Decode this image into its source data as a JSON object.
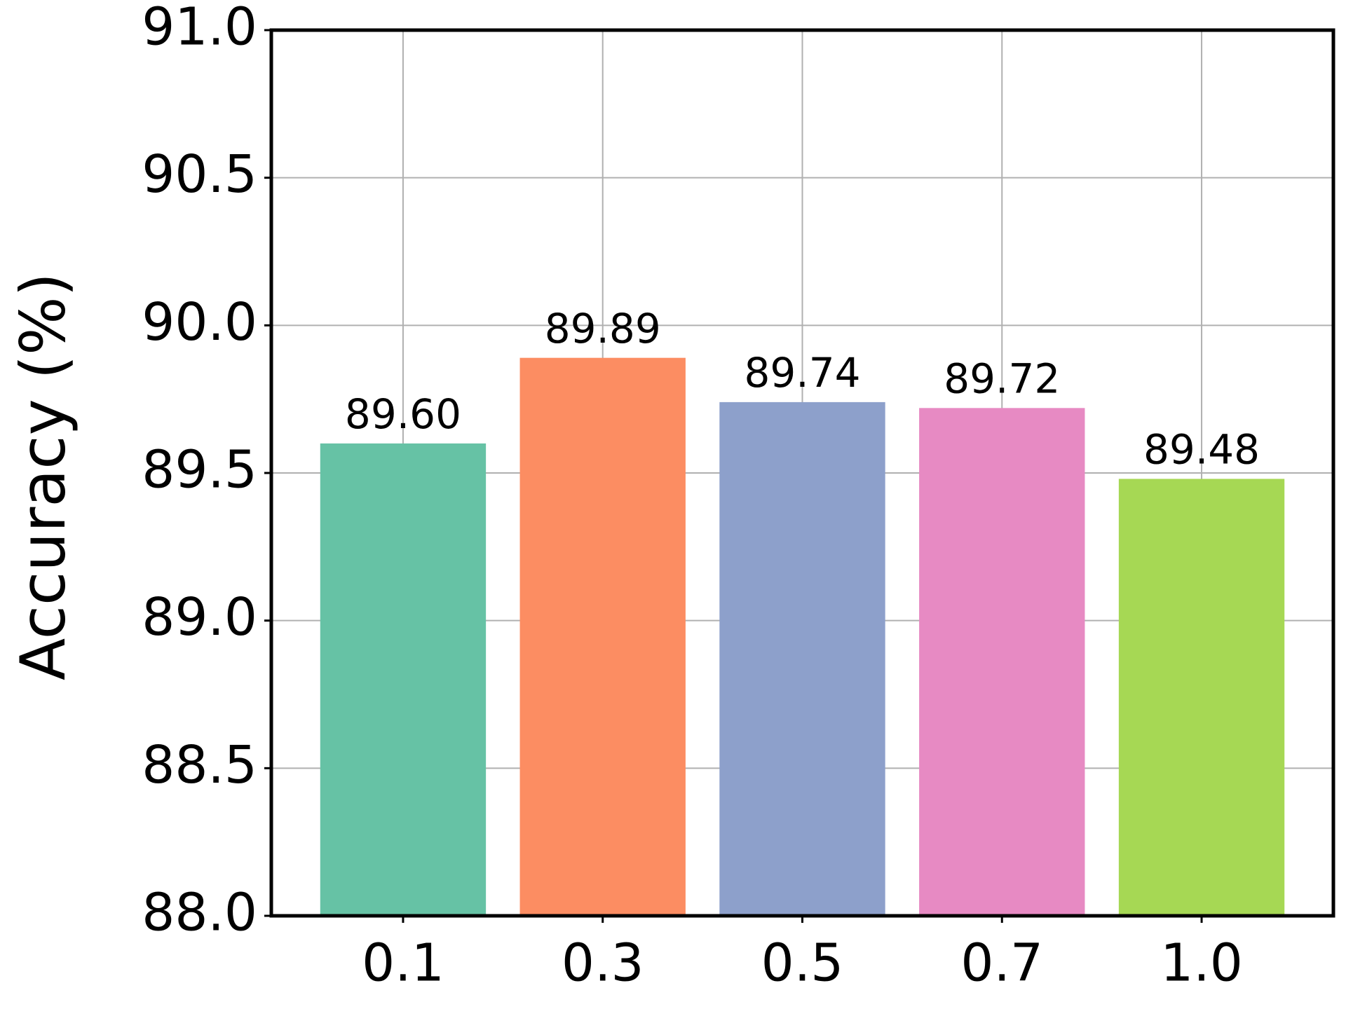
{
  "chart_data": {
    "type": "bar",
    "ylabel": "Accuracy (%)",
    "categories": [
      "0.1",
      "0.3",
      "0.5",
      "0.7",
      "1.0"
    ],
    "values": [
      89.6,
      89.89,
      89.74,
      89.72,
      89.48
    ],
    "value_labels": [
      "89.60",
      "89.89",
      "89.74",
      "89.72",
      "89.48"
    ],
    "colors": [
      "#66c2a5",
      "#fc8d62",
      "#8da0cb",
      "#e78ac3",
      "#a6d854"
    ],
    "ylim": [
      88,
      91
    ],
    "yticks": [
      {
        "value": 88,
        "label": "88.0"
      },
      88.5,
      {
        "value": 89,
        "label": "89.0"
      },
      89.5,
      {
        "value": 90,
        "label": "90.0"
      },
      90.5,
      {
        "value": 91,
        "label": "91.0"
      }
    ],
    "grid": true
  }
}
